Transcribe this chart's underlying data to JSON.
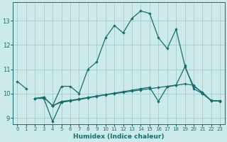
{
  "xlabel": "Humidex (Indice chaleur)",
  "background_color": "#cceaea",
  "grid_color": "#aacece",
  "line_color": "#1a6b6b",
  "xlim": [
    -0.5,
    23.5
  ],
  "ylim": [
    8.75,
    13.75
  ],
  "xticks": [
    0,
    1,
    2,
    3,
    4,
    5,
    6,
    7,
    8,
    9,
    10,
    11,
    12,
    13,
    14,
    15,
    16,
    17,
    18,
    19,
    20,
    21,
    22,
    23
  ],
  "yticks": [
    9,
    10,
    11,
    12,
    13
  ],
  "line1_x": [
    0,
    1,
    2,
    3,
    4,
    5,
    6,
    7,
    8,
    9,
    10,
    11,
    12,
    13,
    14,
    15,
    16,
    17,
    18,
    19,
    20,
    21,
    22,
    23
  ],
  "line1_y": [
    10.5,
    10.2,
    9.8,
    9.8,
    9.5,
    10.3,
    10.3,
    10.0,
    11.0,
    11.3,
    12.3,
    12.8,
    12.5,
    13.1,
    13.4,
    13.3,
    12.3,
    11.85,
    12.65,
    11.15,
    10.2,
    10.0,
    9.7,
    9.7
  ],
  "line1_gaps": [
    false,
    false,
    true,
    true,
    false,
    false,
    false,
    false,
    false,
    false,
    false,
    false,
    false,
    false,
    false,
    false,
    false,
    false,
    false,
    false,
    false,
    false,
    false,
    false
  ],
  "line2_x": [
    2,
    3,
    4,
    5,
    6
  ],
  "line2_y": [
    9.8,
    9.8,
    8.85,
    9.65,
    9.7
  ],
  "line3_x": [
    2,
    3,
    4,
    5,
    6,
    7,
    8,
    9,
    10,
    11,
    12,
    13,
    14,
    15,
    16,
    17,
    18,
    19,
    20,
    21,
    22,
    23
  ],
  "line3_y": [
    9.8,
    9.85,
    9.5,
    9.65,
    9.7,
    9.75,
    9.82,
    9.88,
    9.95,
    10.0,
    10.05,
    10.1,
    10.15,
    10.2,
    10.25,
    10.3,
    10.35,
    11.1,
    10.3,
    10.05,
    9.7,
    9.7
  ],
  "line4_x": [
    2,
    3,
    4,
    5,
    6,
    7,
    8,
    9,
    10,
    11,
    12,
    13,
    14,
    15,
    16,
    17,
    18,
    19,
    20,
    21,
    22,
    23
  ],
  "line4_y": [
    9.8,
    9.85,
    9.5,
    9.68,
    9.72,
    9.78,
    9.84,
    9.9,
    9.96,
    10.02,
    10.08,
    10.14,
    10.2,
    10.26,
    9.68,
    10.28,
    10.34,
    10.4,
    10.34,
    10.02,
    9.72,
    9.68
  ]
}
